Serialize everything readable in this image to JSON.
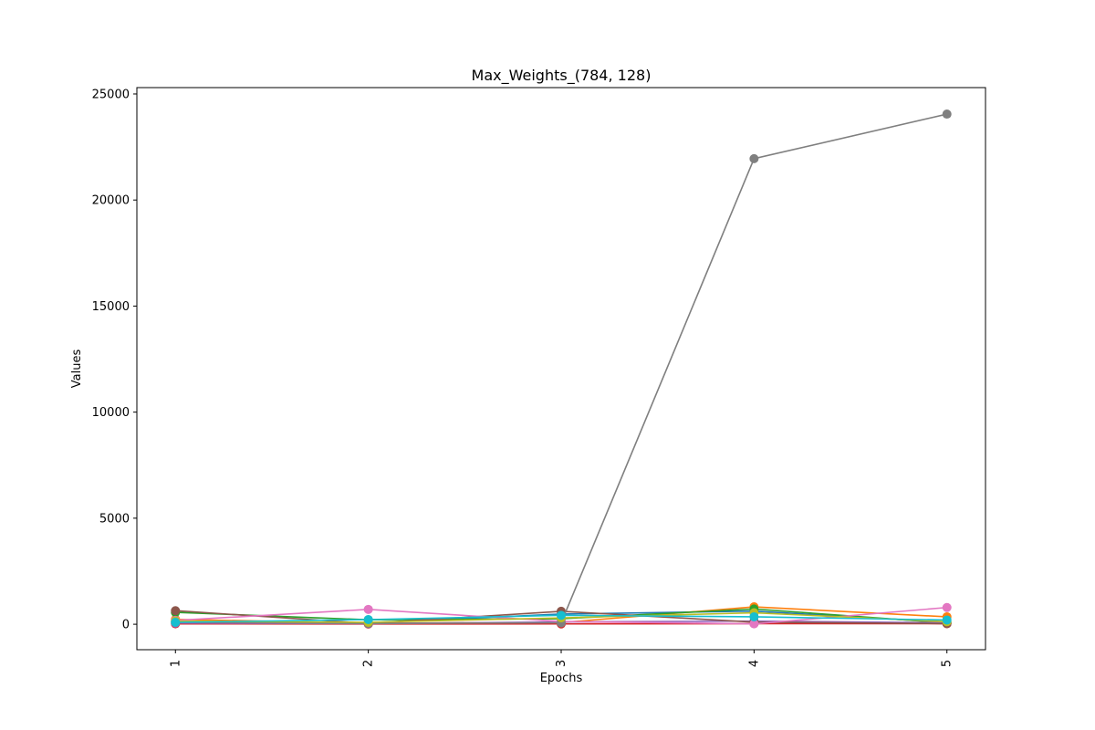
{
  "chart_data": {
    "type": "line",
    "title": "Max_Weights_(784, 128)",
    "xlabel": "Epochs",
    "ylabel": "Values",
    "x": [
      1,
      2,
      3,
      4,
      5
    ],
    "x_tick_labels": [
      "1",
      "2",
      "3",
      "4",
      "5"
    ],
    "xlim": [
      0.8,
      5.2
    ],
    "ylim": [
      -1200,
      25300
    ],
    "y_ticks": [
      0,
      5000,
      10000,
      15000,
      20000,
      25000
    ],
    "y_tick_labels": [
      "0",
      "5000",
      "10000",
      "15000",
      "20000",
      "25000"
    ],
    "grid": false,
    "legend": false,
    "series": [
      {
        "color": "#1f77b4",
        "values": [
          120,
          70,
          480,
          620,
          90
        ]
      },
      {
        "color": "#ff7f0e",
        "values": [
          230,
          50,
          80,
          820,
          350
        ]
      },
      {
        "color": "#2ca02c",
        "values": [
          560,
          210,
          260,
          720,
          60
        ]
      },
      {
        "color": "#d62728",
        "values": [
          20,
          10,
          15,
          30,
          25
        ]
      },
      {
        "color": "#9467bd",
        "values": [
          60,
          30,
          110,
          150,
          70
        ]
      },
      {
        "color": "#8c564b",
        "values": [
          640,
          40,
          610,
          100,
          30
        ]
      },
      {
        "color": "#e377c2",
        "values": [
          180,
          700,
          130,
          20,
          790
        ]
      },
      {
        "color": "#7f7f7f",
        "values": [
          100,
          40,
          70,
          21950,
          24050
        ]
      },
      {
        "color": "#bcbd22",
        "values": [
          150,
          90,
          300,
          540,
          120
        ]
      },
      {
        "color": "#17becf",
        "values": [
          90,
          220,
          420,
          350,
          200
        ]
      }
    ]
  }
}
